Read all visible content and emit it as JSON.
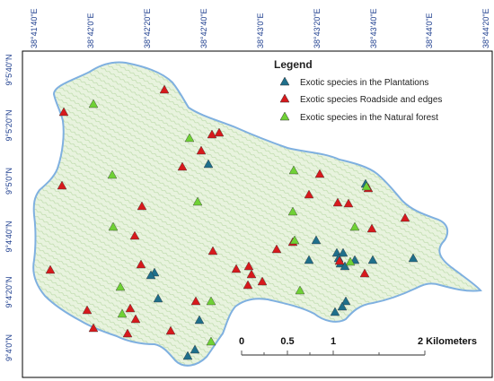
{
  "colors": {
    "frame": "#000000",
    "tick_label": "#1f3f8f",
    "boundary": "#7fb0e0",
    "area_fill": "#e8f3de",
    "area_hatch": "#b9d9a6",
    "plantations": "#1f6f8b",
    "roadside": "#d7191c",
    "natural_forest": "#6fd135"
  },
  "x_ticks": [
    "38°41'40\"E",
    "38°42'0\"E",
    "38°42'20\"E",
    "38°42'40\"E",
    "38°43'0\"E",
    "38°43'20\"E",
    "38°43'40\"E",
    "38°44'0\"E",
    "38°44'20\"E"
  ],
  "y_ticks": [
    "9°5'40\"N",
    "9°5'20\"N",
    "9°5'0\"N",
    "9°4'40\"N",
    "9°4'20\"N",
    "9°4'0\"N"
  ],
  "legend": {
    "title": "Legend",
    "items": [
      {
        "label": "Exotic species in the Plantations",
        "icon": "triangle",
        "color_key": "plantations"
      },
      {
        "label": "Exotic species Roadside and edges",
        "icon": "triangle",
        "color_key": "roadside"
      },
      {
        "label": "Exotic species in the Natural forest",
        "icon": "triangle",
        "color_key": "natural_forest"
      }
    ]
  },
  "scale_bar": {
    "labels": [
      "0",
      "0.5",
      "1",
      "2 Kilometers"
    ]
  },
  "points": {
    "plantations": [
      [
        232,
        183
      ],
      [
        352,
        268
      ],
      [
        375,
        282
      ],
      [
        382,
        282
      ],
      [
        377,
        288
      ],
      [
        379,
        294
      ],
      [
        384,
        297
      ],
      [
        395,
        290
      ],
      [
        344,
        290
      ],
      [
        415,
        290
      ],
      [
        460,
        288
      ],
      [
        176,
        333
      ],
      [
        172,
        304
      ],
      [
        168,
        307
      ],
      [
        222,
        357
      ],
      [
        209,
        397
      ],
      [
        217,
        390
      ],
      [
        385,
        336
      ],
      [
        381,
        342
      ],
      [
        373,
        348
      ],
      [
        407,
        205
      ]
    ],
    "roadside": [
      [
        71,
        125
      ],
      [
        183,
        100
      ],
      [
        236,
        150
      ],
      [
        244,
        148
      ],
      [
        224,
        168
      ],
      [
        203,
        186
      ],
      [
        69,
        207
      ],
      [
        356,
        194
      ],
      [
        344,
        217
      ],
      [
        376,
        226
      ],
      [
        388,
        227
      ],
      [
        158,
        230
      ],
      [
        410,
        210
      ],
      [
        451,
        243
      ],
      [
        414,
        255
      ],
      [
        150,
        263
      ],
      [
        237,
        280
      ],
      [
        326,
        270
      ],
      [
        308,
        278
      ],
      [
        56,
        301
      ],
      [
        157,
        295
      ],
      [
        277,
        297
      ],
      [
        263,
        300
      ],
      [
        280,
        306
      ],
      [
        292,
        314
      ],
      [
        276,
        318
      ],
      [
        378,
        291
      ],
      [
        406,
        305
      ],
      [
        145,
        344
      ],
      [
        97,
        346
      ],
      [
        151,
        356
      ],
      [
        218,
        336
      ],
      [
        104,
        366
      ],
      [
        142,
        372
      ],
      [
        190,
        369
      ]
    ],
    "natural_forest": [
      [
        104,
        116
      ],
      [
        211,
        154
      ],
      [
        125,
        195
      ],
      [
        327,
        190
      ],
      [
        220,
        225
      ],
      [
        408,
        208
      ],
      [
        126,
        253
      ],
      [
        326,
        236
      ],
      [
        395,
        253
      ],
      [
        328,
        268
      ],
      [
        390,
        292
      ],
      [
        134,
        320
      ],
      [
        334,
        324
      ],
      [
        136,
        350
      ],
      [
        235,
        336
      ],
      [
        235,
        381
      ]
    ]
  }
}
